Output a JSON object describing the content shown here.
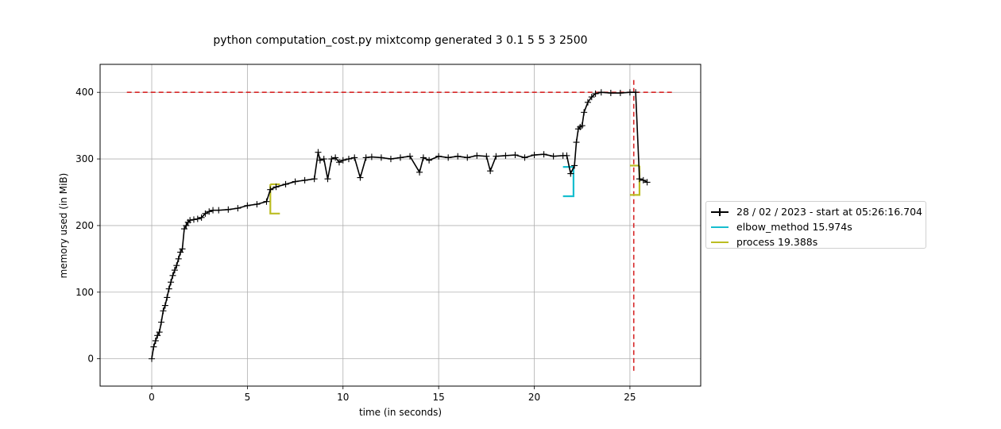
{
  "chart_data": {
    "type": "line",
    "title": "python computation_cost.py mixtcomp generated 3 0.1 5 5 3 2500",
    "xlabel": "time (in seconds)",
    "ylabel": "memory used (in MiB)",
    "xlim": [
      -2.7,
      28.7
    ],
    "ylim": [
      -41,
      442
    ],
    "xticks": [
      0,
      5,
      10,
      15,
      20,
      25
    ],
    "yticks": [
      0,
      100,
      200,
      300,
      400
    ],
    "xtick_labels": [
      "0",
      "5",
      "10",
      "15",
      "20",
      "25"
    ],
    "ytick_labels": [
      "0",
      "100",
      "200",
      "300",
      "400"
    ],
    "grid": true,
    "legend": {
      "placement": "outside-right",
      "entries": [
        {
          "label": "28 / 02 / 2023 - start at 05:26:16.704",
          "color": "#000000",
          "style": "line-plus"
        },
        {
          "label": "elbow_method 15.974s",
          "color": "#17becf",
          "style": "line"
        },
        {
          "label": "process 19.388s",
          "color": "#bcbd22",
          "style": "line"
        }
      ]
    },
    "series": [
      {
        "name": "28 / 02 / 2023 - start at 05:26:16.704",
        "color": "#000000",
        "marker": "+",
        "x": [
          0,
          0.1,
          0.2,
          0.3,
          0.4,
          0.5,
          0.6,
          0.7,
          0.8,
          0.9,
          1.0,
          1.1,
          1.2,
          1.3,
          1.4,
          1.5,
          1.6,
          1.7,
          1.8,
          1.9,
          2.0,
          2.2,
          2.4,
          2.6,
          2.8,
          3.0,
          3.2,
          3.5,
          4.0,
          4.5,
          5.0,
          5.5,
          6.0,
          6.2,
          6.5,
          7.0,
          7.5,
          8.0,
          8.5,
          8.7,
          8.8,
          9.0,
          9.2,
          9.4,
          9.6,
          9.8,
          10.0,
          10.3,
          10.6,
          10.9,
          11.2,
          11.5,
          12.0,
          12.5,
          13.0,
          13.5,
          14.0,
          14.2,
          14.5,
          15.0,
          15.5,
          16.0,
          16.5,
          17.0,
          17.5,
          17.7,
          18.0,
          18.5,
          19.0,
          19.5,
          20.0,
          20.5,
          21.0,
          21.5,
          21.7,
          21.9,
          22.1,
          22.2,
          22.3,
          22.4,
          22.5,
          22.6,
          22.8,
          23.0,
          23.2,
          23.5,
          24.0,
          24.5,
          25.0,
          25.3,
          25.5,
          25.7,
          25.9
        ],
        "y": [
          0,
          18,
          27,
          35,
          40,
          55,
          72,
          80,
          92,
          105,
          115,
          125,
          133,
          140,
          150,
          160,
          165,
          195,
          200,
          205,
          208,
          209,
          210,
          212,
          218,
          221,
          223,
          223,
          224,
          226,
          230,
          232,
          236,
          254,
          258,
          262,
          266,
          268,
          270,
          310,
          298,
          300,
          270,
          300,
          302,
          295,
          298,
          300,
          302,
          272,
          302,
          303,
          302,
          300,
          302,
          304,
          280,
          302,
          298,
          304,
          302,
          304,
          302,
          305,
          304,
          282,
          304,
          305,
          306,
          302,
          306,
          307,
          304,
          305,
          305,
          278,
          290,
          325,
          345,
          348,
          350,
          370,
          385,
          393,
          398,
          400,
          399,
          399,
          400,
          400,
          270,
          268,
          265
        ]
      }
    ],
    "reference_lines": [
      {
        "orientation": "horizontal",
        "y": 400,
        "x_from": -1.3,
        "x_to": 27.2,
        "color": "#d62728",
        "style": "dashed"
      },
      {
        "orientation": "vertical",
        "x": 25.2,
        "y_from": -18,
        "y_to": 420,
        "color": "#d62728",
        "style": "dashed"
      }
    ],
    "brackets": [
      {
        "label": "elbow_method 15.974s",
        "color": "#17becf",
        "x_start": 22.05,
        "y_top": 288,
        "y_bottom": 244,
        "x_tip": 21.5
      },
      {
        "label": "process 19.388s",
        "color": "#bcbd22",
        "x_start": 6.2,
        "y_top": 262,
        "y_bottom": 218,
        "x_tip": 6.7
      },
      {
        "label": "process 19.388s",
        "color": "#bcbd22",
        "x_start": 25.5,
        "y_top": 290,
        "y_bottom": 246,
        "x_tip": 25.0
      }
    ]
  }
}
